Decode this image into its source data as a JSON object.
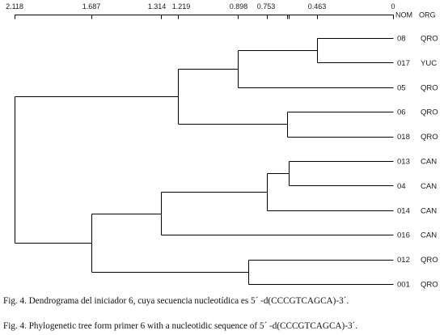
{
  "dendrogram": {
    "axis": {
      "ticks": [
        {
          "value": 2.118,
          "label": "2.118"
        },
        {
          "value": 1.687,
          "label": "1.687"
        },
        {
          "value": 1.314,
          "label": "1.314"
        },
        {
          "value": 1.219,
          "label": "1.219"
        },
        {
          "value": 0.898,
          "label": "0.898"
        },
        {
          "value": 0.753,
          "label": "0.753"
        },
        {
          "value": 0.636
        },
        {
          "value": 0.627
        },
        {
          "value": 0.463,
          "label": "0.463"
        },
        {
          "value": 0,
          "label": "0"
        }
      ]
    },
    "columns": {
      "nom": "NOM",
      "org": "ORG"
    },
    "tree": {
      "height": 2.118,
      "children": [
        {
          "height": 1.219,
          "children": [
            {
              "height": 0.898,
              "children": [
                {
                  "height": 0.463,
                  "children": [
                    {
                      "nom": "08",
                      "org": "QRO"
                    },
                    {
                      "nom": "017",
                      "org": "YUC"
                    }
                  ]
                },
                {
                  "nom": "05",
                  "org": "QRO"
                }
              ]
            },
            {
              "height": 0.636,
              "children": [
                {
                  "nom": "06",
                  "org": "QRO"
                },
                {
                  "nom": "018",
                  "org": "QRO"
                }
              ]
            }
          ]
        },
        {
          "height": 1.687,
          "children": [
            {
              "height": 1.314,
              "children": [
                {
                  "height": 0.753,
                  "children": [
                    {
                      "height": 0.627,
                      "children": [
                        {
                          "nom": "013",
                          "org": "CAN"
                        },
                        {
                          "nom": "04",
                          "org": "CAN"
                        }
                      ]
                    },
                    {
                      "nom": "014",
                      "org": "CAN"
                    }
                  ]
                },
                {
                  "nom": "016",
                  "org": "CAN"
                }
              ]
            },
            {
              "height": 0.846,
              "children": [
                {
                  "nom": "012",
                  "org": "QRO"
                },
                {
                  "nom": "001",
                  "org": "QRO"
                }
              ]
            }
          ]
        }
      ]
    }
  },
  "captions": [
    "Fig. 4. Dendrograma del iniciador 6, cuya secuencia nucleotídica es 5´ -d(CCCGTCAGCA)-3´.",
    "Fig. 4. Phylogenetic tree form primer 6 with a nucleotidic sequence of 5´ -d(CCCGTCAGCA)-3´."
  ]
}
